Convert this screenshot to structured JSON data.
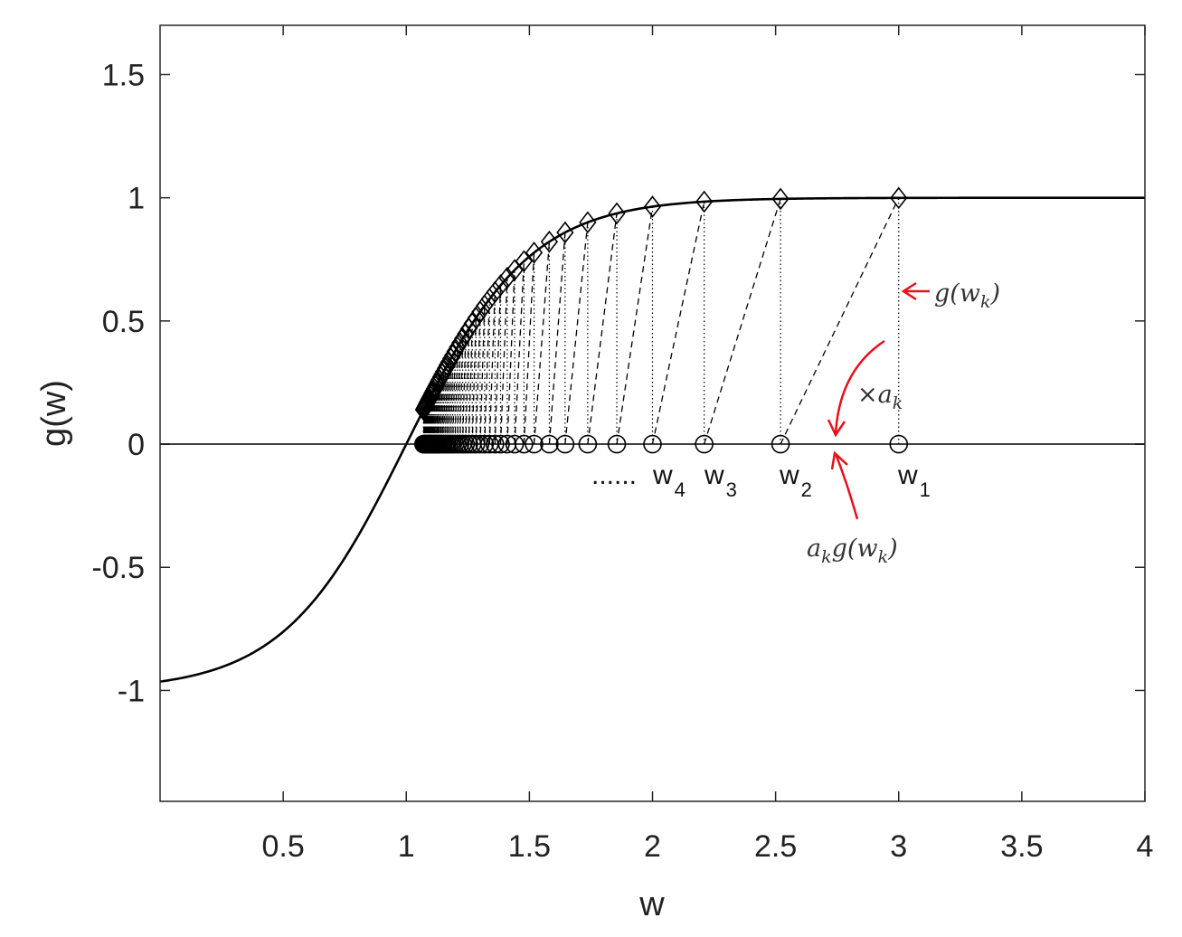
{
  "chart_data": {
    "type": "line",
    "xlabel": "w",
    "ylabel": "g(w)",
    "xlim": [
      0,
      4
    ],
    "ylim": [
      -1.45,
      1.7
    ],
    "xticks": [
      "0.5",
      "1",
      "1.5",
      "2",
      "2.5",
      "3",
      "3.5",
      "4"
    ],
    "xtick_values": [
      0.5,
      1,
      1.5,
      2,
      2.5,
      3,
      3.5,
      4
    ],
    "yticks": [
      "-1",
      "-0.5",
      "0",
      "0.5",
      "1",
      "1.5"
    ],
    "ytick_values": [
      -1,
      -0.5,
      0,
      0.5,
      1,
      1.5
    ],
    "grid": false,
    "colors": {
      "curve": "#000000",
      "annotation": "#e8101a",
      "axes": "#262626"
    },
    "series": [
      {
        "style": "solid-curve",
        "function": "tanh(2*(w-1))"
      },
      {
        "style": "zero-line",
        "y": 0
      }
    ],
    "iterates": {
      "w": [
        3.0,
        2.52,
        2.21,
        2.0,
        1.855,
        1.737,
        1.645,
        1.581,
        1.519,
        1.478,
        1.44,
        1.41,
        1.383,
        1.36,
        1.338,
        1.318,
        1.3,
        1.283,
        1.268,
        1.254,
        1.241,
        1.229,
        1.218,
        1.208,
        1.198,
        1.189,
        1.181,
        1.173,
        1.166,
        1.159,
        1.152,
        1.146,
        1.14,
        1.134,
        1.129,
        1.124,
        1.119,
        1.114,
        1.11,
        1.106,
        1.102,
        1.098,
        1.094,
        1.091,
        1.088,
        1.085,
        1.082,
        1.079,
        1.077,
        1.074,
        1.072,
        1.07
      ],
      "g_marker": "diamond",
      "w_marker": "circle"
    },
    "labels": {
      "w1": {
        "base": "w",
        "sub": "1",
        "x": 3.0
      },
      "w2": {
        "base": "w",
        "sub": "2",
        "x": 2.52
      },
      "w3": {
        "base": "w",
        "sub": "3",
        "x": 2.21
      },
      "w4": {
        "base": "w",
        "sub": "4",
        "x": 2.0
      },
      "dots": "......"
    },
    "annotations": {
      "g_wk": {
        "text": "g(w",
        "sub": "k",
        "close": ")"
      },
      "times_ak": {
        "sym": "×",
        "text": "a",
        "sub": "k"
      },
      "ak_gwk": {
        "text": "a",
        "sub": "k",
        "rest": "g(w",
        "sub2": "k",
        "close": ")"
      }
    }
  }
}
